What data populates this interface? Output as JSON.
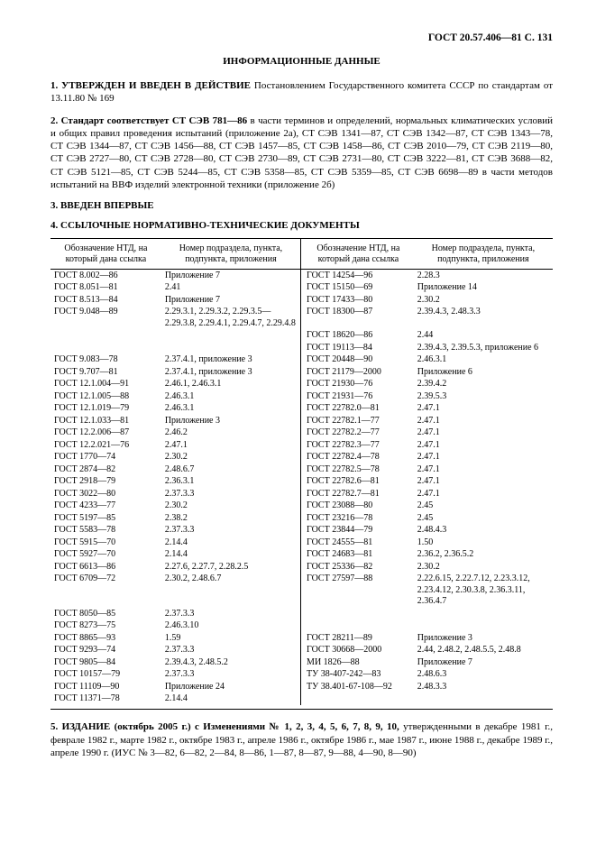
{
  "header": {
    "code": "ГОСТ 20.57.406—81 С. 131"
  },
  "title": "ИНФОРМАЦИОННЫЕ ДАННЫЕ",
  "para1": {
    "lead": "1. УТВЕРЖДЕН И ВВЕДЕН В ДЕЙСТВИЕ",
    "rest": " Постановлением Государственного комитета СССР по стандартам от 13.11.80 № 169"
  },
  "para2": {
    "lead": "2. Стандарт соответствует СТ СЭВ 781—86",
    "rest": " в части терминов и определений, нормальных климатических условий и общих правил проведения испытаний (приложение 2а), СТ СЭВ 1341—87, СТ СЭВ 1342—87, СТ СЭВ 1343—78, СТ СЭВ 1344—87, СТ СЭВ 1456—88, СТ СЭВ 1457—85, СТ СЭВ 1458—86, СТ СЭВ 2010—79, СТ СЭВ 2119—80, СТ СЭВ 2727—80, СТ СЭВ 2728—80, СТ СЭВ 2730—89, СТ СЭВ 2731—80, СТ СЭВ 3222—81, СТ СЭВ 3688—82, СТ СЭВ 5121—85, СТ СЭВ 5244—85, СТ СЭВ 5358—85, СТ СЭВ 5359—85, СТ СЭВ 6698—89 в части методов испытаний на ВВФ изделий электронной техники (приложение 2б)"
  },
  "sect3": "3. ВВЕДЕН ВПЕРВЫЕ",
  "sect4": "4. ССЫЛОЧНЫЕ НОРМАТИВНО-ТЕХНИЧЕСКИЕ ДОКУМЕНТЫ",
  "tableHeads": {
    "a": "Обозначение НТД, на который дана ссылка",
    "b": "Номер подраздела, пункта, подпункта, приложения",
    "c": "Обозначение НТД, на который дана ссылка",
    "d": "Номер подраздела, пункта, подпункта, приложения"
  },
  "rows": [
    [
      "ГОСТ 8.002—86",
      "Приложение 7",
      "ГОСТ 14254—96",
      "2.28.3"
    ],
    [
      "ГОСТ 8.051—81",
      "2.41",
      "ГОСТ 15150—69",
      "Приложение 14"
    ],
    [
      "ГОСТ 8.513—84",
      "Приложение 7",
      "ГОСТ 17433—80",
      "2.30.2"
    ],
    [
      "ГОСТ 9.048—89",
      "2.29.3.1, 2.29.3.2, 2.29.3.5—2.29.3.8, 2.29.4.1, 2.29.4.7, 2.29.4.8",
      "ГОСТ 18300—87",
      "2.39.4.3, 2.48.3.3"
    ],
    [
      "",
      "",
      "ГОСТ 18620—86",
      "2.44"
    ],
    [
      "",
      "",
      "ГОСТ 19113—84",
      "2.39.4.3, 2.39.5.3, приложение 6"
    ],
    [
      "ГОСТ 9.083—78",
      "2.37.4.1, приложение 3",
      "ГОСТ 20448—90",
      "2.46.3.1"
    ],
    [
      "ГОСТ 9.707—81",
      "2.37.4.1, приложение 3",
      "ГОСТ 21179—2000",
      "Приложение 6"
    ],
    [
      "ГОСТ 12.1.004—91",
      "2.46.1, 2.46.3.1",
      "ГОСТ 21930—76",
      "2.39.4.2"
    ],
    [
      "ГОСТ 12.1.005—88",
      "2.46.3.1",
      "ГОСТ 21931—76",
      "2.39.5.3"
    ],
    [
      "ГОСТ 12.1.019—79",
      "2.46.3.1",
      "ГОСТ 22782.0—81",
      "2.47.1"
    ],
    [
      "ГОСТ 12.1.033—81",
      "Приложение 3",
      "ГОСТ 22782.1—77",
      "2.47.1"
    ],
    [
      "ГОСТ 12.2.006—87",
      "2.46.2",
      "ГОСТ 22782.2—77",
      "2.47.1"
    ],
    [
      "ГОСТ 12.2.021—76",
      "2.47.1",
      "ГОСТ 22782.3—77",
      "2.47.1"
    ],
    [
      "ГОСТ 1770—74",
      "2.30.2",
      "ГОСТ 22782.4—78",
      "2.47.1"
    ],
    [
      "ГОСТ 2874—82",
      "2.48.6.7",
      "ГОСТ 22782.5—78",
      "2.47.1"
    ],
    [
      "ГОСТ 2918—79",
      "2.36.3.1",
      "ГОСТ 22782.6—81",
      "2.47.1"
    ],
    [
      "ГОСТ 3022—80",
      "2.37.3.3",
      "ГОСТ 22782.7—81",
      "2.47.1"
    ],
    [
      "ГОСТ 4233—77",
      "2.30.2",
      "ГОСТ 23088—80",
      "2.45"
    ],
    [
      "ГОСТ 5197—85",
      "2.38.2",
      "ГОСТ 23216—78",
      "2.45"
    ],
    [
      "ГОСТ 5583—78",
      "2.37.3.3",
      "ГОСТ 23844—79",
      "2.48.4.3"
    ],
    [
      "ГОСТ 5915—70",
      "2.14.4",
      "ГОСТ 24555—81",
      "1.50"
    ],
    [
      "ГОСТ 5927—70",
      "2.14.4",
      "ГОСТ 24683—81",
      "2.36.2, 2.36.5.2"
    ],
    [
      "ГОСТ 6613—86",
      "2.27.6, 2.27.7, 2.28.2.5",
      "ГОСТ 25336—82",
      "2.30.2"
    ],
    [
      "ГОСТ 6709—72",
      "2.30.2, 2.48.6.7",
      "ГОСТ 27597—88",
      "2.22.6.15, 2.22.7.12, 2.23.3.12, 2.23.4.12, 2.30.3.8, 2.36.3.11, 2.36.4.7"
    ],
    [
      "ГОСТ 8050—85",
      "2.37.3.3",
      "",
      ""
    ],
    [
      "ГОСТ 8273—75",
      "2.46.3.10",
      "",
      ""
    ],
    [
      "ГОСТ 8865—93",
      "1.59",
      "ГОСТ 28211—89",
      "Приложение 3"
    ],
    [
      "ГОСТ 9293—74",
      "2.37.3.3",
      "ГОСТ 30668—2000",
      "2.44, 2.48.2, 2.48.5.5, 2.48.8"
    ],
    [
      "ГОСТ 9805—84",
      "2.39.4.3, 2.48.5.2",
      "МИ 1826—88",
      "Приложение 7"
    ],
    [
      "ГОСТ 10157—79",
      "2.37.3.3",
      "ТУ 38-407-242—83",
      "2.48.6.3"
    ],
    [
      "ГОСТ 11109—90",
      "Приложение 24",
      "ТУ 38.401-67-108—92",
      "2.48.3.3"
    ],
    [
      "ГОСТ 11371—78",
      "2.14.4",
      "",
      ""
    ]
  ],
  "para5": {
    "lead": "5. ИЗДАНИЕ (октябрь 2005 г.) с Изменениями № 1, 2, 3, 4, 5, 6, 7, 8, 9, 10,",
    "rest": " утвержденными в декабре 1981 г., феврале 1982 г., марте 1982 г., октябре 1983 г., апреле 1986 г., октябре 1986 г., мае 1987 г., июне 1988 г., декабре 1989 г., апреле 1990 г. (ИУС № 3—82, 6—82, 2—84, 8—86, 1—87, 8—87, 9—88, 4—90, 8—90)"
  }
}
